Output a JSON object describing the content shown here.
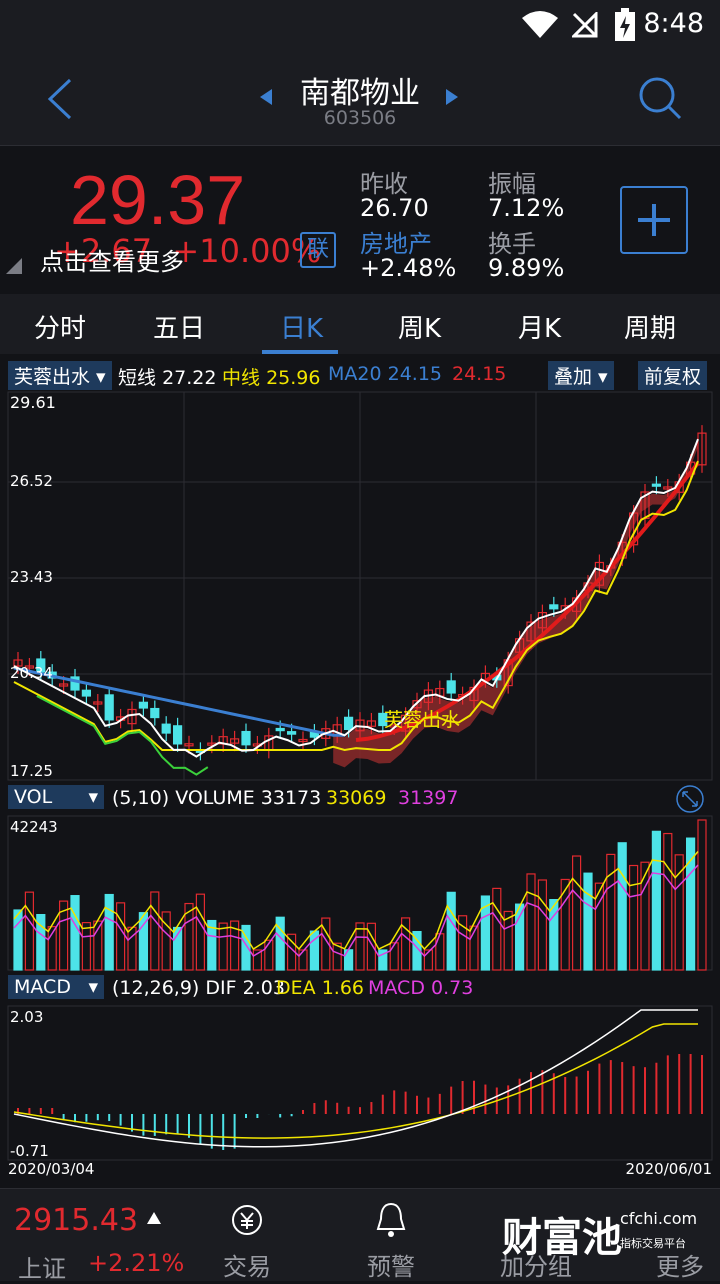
{
  "status_bar": {
    "time": "8:48"
  },
  "header": {
    "stock_name": "南都物业",
    "stock_code": "603506"
  },
  "quote": {
    "price": "29.37",
    "change": "+2.67",
    "change_pct": "+10.00%",
    "hint": "点击查看更多",
    "lian": "联",
    "prev_close_label": "昨收",
    "prev_close": "26.70",
    "sector_label": "房地产",
    "sector_change": "+2.48%",
    "amplitude_label": "振幅",
    "amplitude": "7.12%",
    "turnover_label": "换手",
    "turnover": "9.89%"
  },
  "tabs": [
    "分时",
    "五日",
    "日K",
    "周K",
    "月K",
    "周期"
  ],
  "active_tab": "日K",
  "kline": {
    "indicator": "芙蓉出水",
    "short_label": "短线",
    "short_value": "27.22",
    "mid_label": "中线",
    "mid_value": "25.96",
    "ma20_label": "MA20",
    "ma20_value": "24.15",
    "red_value": "24.15",
    "overlay_label": "叠加",
    "adjust_label": "前复权",
    "y_labels": [
      "29.61",
      "26.52",
      "23.43",
      "20.34",
      "17.25"
    ],
    "signal_label": "芙蓉出水"
  },
  "volume": {
    "indicator": "VOL",
    "params": "(5,10)",
    "label": "VOLUME",
    "v1": "33173",
    "v2": "33069",
    "v3": "31397",
    "max": "42243"
  },
  "macd": {
    "indicator": "MACD",
    "params": "(12,26,9)",
    "dif_label": "DIF",
    "dif": "2.03",
    "dea_label": "DEA",
    "dea": "1.66",
    "macd_label": "MACD",
    "macd": "0.73",
    "y_top": "2.03",
    "y_bottom": "-0.71",
    "date_start": "2020/03/04",
    "date_end": "2020/06/01"
  },
  "bottom": {
    "index_value": "2915.43",
    "index_name": "上证",
    "index_change": "+2.21%",
    "nav": [
      "交易",
      "预警",
      "加分组",
      "更多"
    ],
    "watermark_brand": "财富池",
    "watermark_site": "cfchi.com",
    "watermark_sub": "指标交易平台"
  },
  "colors": {
    "up": "#e12a2f",
    "down": "#4de3e8",
    "accent": "#3b7fd1",
    "yellow": "#f1e500",
    "magenta": "#e040e0"
  }
}
